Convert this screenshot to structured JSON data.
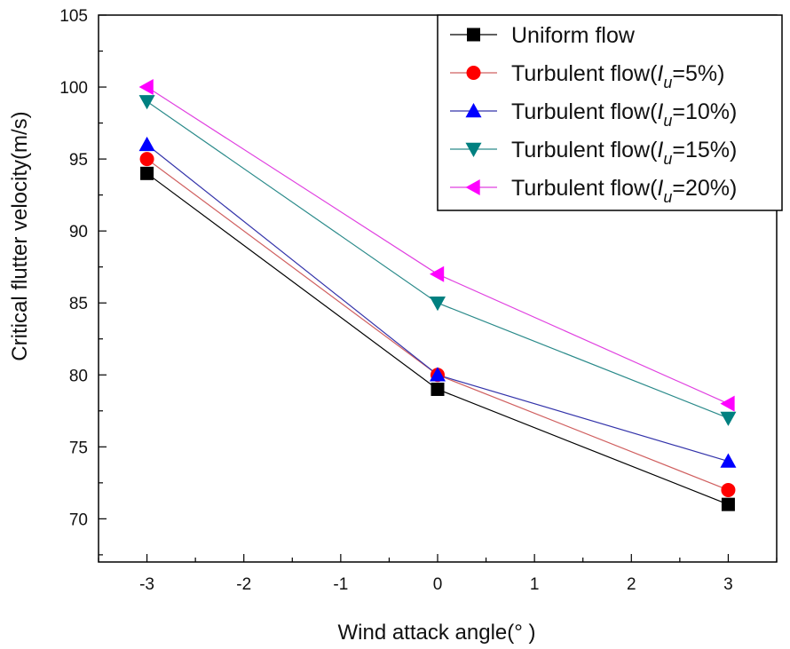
{
  "chart_data": {
    "type": "line",
    "title": "",
    "xlabel": "Wind attack angle(° )",
    "ylabel": "Critical flutter velocity(m/s)",
    "xlim": [
      -3.5,
      3.5
    ],
    "ylim": [
      67,
      105
    ],
    "x_ticks": [
      "-3",
      "-2",
      "-1",
      "0",
      "1",
      "2",
      "3"
    ],
    "y_ticks": [
      "70",
      "75",
      "80",
      "85",
      "90",
      "95",
      "100",
      "105"
    ],
    "x": [
      -3,
      0,
      3
    ],
    "legend_position": "top-right",
    "series": [
      {
        "name": "Uniform flow",
        "name_parts": [
          "Uniform flow",
          "",
          ""
        ],
        "marker": "square",
        "marker_color": "#000000",
        "line_color": "#000000",
        "values": [
          94,
          79,
          71
        ]
      },
      {
        "name": "Turbulent flow(Iu=5%)",
        "name_parts": [
          "Turbulent flow(",
          "u",
          "=5%)"
        ],
        "marker": "circle",
        "marker_color": "#ff0000",
        "line_color": "#d06060",
        "values": [
          95,
          80,
          72
        ]
      },
      {
        "name": "Turbulent flow(Iu=10%)",
        "name_parts": [
          "Turbulent flow(",
          "u",
          "=10%)"
        ],
        "marker": "triangle-up",
        "marker_color": "#0000ff",
        "line_color": "#3333aa",
        "values": [
          96,
          80,
          74
        ]
      },
      {
        "name": "Turbulent flow(Iu=15%)",
        "name_parts": [
          "Turbulent flow(",
          "u",
          "=15%)"
        ],
        "marker": "triangle-down",
        "marker_color": "#008080",
        "line_color": "#2a8a8a",
        "values": [
          99,
          85,
          77
        ]
      },
      {
        "name": "Turbulent flow(Iu=20%)",
        "name_parts": [
          "Turbulent flow(",
          "u",
          "=20%)"
        ],
        "marker": "triangle-left",
        "marker_color": "#ff00ff",
        "line_color": "#e040e0",
        "values": [
          100,
          87,
          78
        ]
      }
    ]
  }
}
